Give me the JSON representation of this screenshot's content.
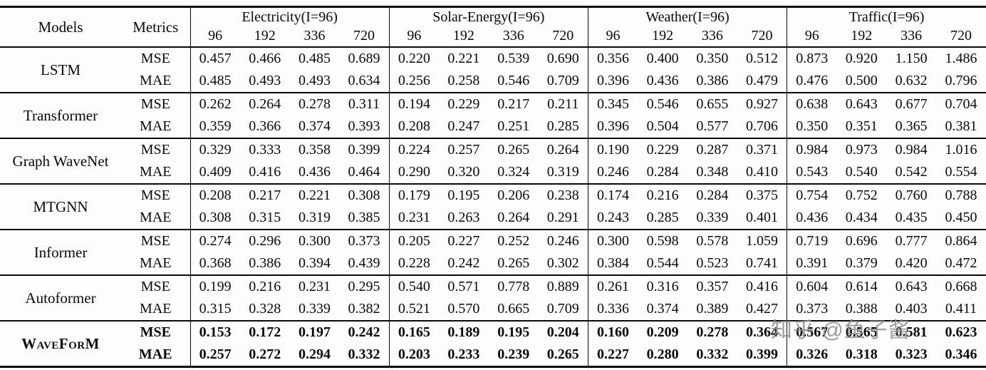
{
  "watermark": "知乎 @鱼子酱",
  "table": {
    "col_models": "Models",
    "col_metrics": "Metrics",
    "groups": [
      {
        "label": "Electricity(I=96)",
        "horizons": [
          "96",
          "192",
          "336",
          "720"
        ]
      },
      {
        "label": "Solar-Energy(I=96)",
        "horizons": [
          "96",
          "192",
          "336",
          "720"
        ]
      },
      {
        "label": "Weather(I=96)",
        "horizons": [
          "96",
          "192",
          "336",
          "720"
        ]
      },
      {
        "label": "Traffic(I=96)",
        "horizons": [
          "96",
          "192",
          "336",
          "720"
        ]
      }
    ],
    "rows": [
      {
        "model": "LSTM",
        "smallcaps": false,
        "bold": false,
        "metrics": [
          {
            "name": "MSE",
            "values": [
              "0.457",
              "0.466",
              "0.485",
              "0.689",
              "0.220",
              "0.221",
              "0.539",
              "0.690",
              "0.356",
              "0.400",
              "0.350",
              "0.512",
              "0.873",
              "0.920",
              "1.150",
              "1.486"
            ]
          },
          {
            "name": "MAE",
            "values": [
              "0.485",
              "0.493",
              "0.493",
              "0.634",
              "0.256",
              "0.258",
              "0.546",
              "0.709",
              "0.396",
              "0.436",
              "0.386",
              "0.479",
              "0.476",
              "0.500",
              "0.632",
              "0.796"
            ]
          }
        ]
      },
      {
        "model": "Transformer",
        "smallcaps": false,
        "bold": false,
        "metrics": [
          {
            "name": "MSE",
            "values": [
              "0.262",
              "0.264",
              "0.278",
              "0.311",
              "0.194",
              "0.229",
              "0.217",
              "0.211",
              "0.345",
              "0.546",
              "0.655",
              "0.927",
              "0.638",
              "0.643",
              "0.677",
              "0.704"
            ]
          },
          {
            "name": "MAE",
            "values": [
              "0.359",
              "0.366",
              "0.374",
              "0.393",
              "0.208",
              "0.247",
              "0.251",
              "0.285",
              "0.396",
              "0.504",
              "0.577",
              "0.706",
              "0.350",
              "0.351",
              "0.365",
              "0.381"
            ]
          }
        ]
      },
      {
        "model": "Graph WaveNet",
        "smallcaps": false,
        "bold": false,
        "metrics": [
          {
            "name": "MSE",
            "values": [
              "0.329",
              "0.333",
              "0.358",
              "0.399",
              "0.224",
              "0.257",
              "0.265",
              "0.264",
              "0.190",
              "0.229",
              "0.287",
              "0.371",
              "0.984",
              "0.973",
              "0.984",
              "1.016"
            ]
          },
          {
            "name": "MAE",
            "values": [
              "0.409",
              "0.416",
              "0.436",
              "0.464",
              "0.290",
              "0.320",
              "0.324",
              "0.319",
              "0.246",
              "0.284",
              "0.348",
              "0.410",
              "0.543",
              "0.540",
              "0.542",
              "0.554"
            ]
          }
        ]
      },
      {
        "model": "MTGNN",
        "smallcaps": false,
        "bold": false,
        "metrics": [
          {
            "name": "MSE",
            "values": [
              "0.208",
              "0.217",
              "0.221",
              "0.308",
              "0.179",
              "0.195",
              "0.206",
              "0.238",
              "0.174",
              "0.216",
              "0.284",
              "0.375",
              "0.754",
              "0.752",
              "0.760",
              "0.788"
            ]
          },
          {
            "name": "MAE",
            "values": [
              "0.308",
              "0.315",
              "0.319",
              "0.385",
              "0.231",
              "0.263",
              "0.264",
              "0.291",
              "0.243",
              "0.285",
              "0.339",
              "0.401",
              "0.436",
              "0.434",
              "0.435",
              "0.450"
            ]
          }
        ]
      },
      {
        "model": "Informer",
        "smallcaps": false,
        "bold": false,
        "metrics": [
          {
            "name": "MSE",
            "values": [
              "0.274",
              "0.296",
              "0.300",
              "0.373",
              "0.205",
              "0.227",
              "0.252",
              "0.246",
              "0.300",
              "0.598",
              "0.578",
              "1.059",
              "0.719",
              "0.696",
              "0.777",
              "0.864"
            ]
          },
          {
            "name": "MAE",
            "values": [
              "0.368",
              "0.386",
              "0.394",
              "0.439",
              "0.228",
              "0.242",
              "0.265",
              "0.302",
              "0.384",
              "0.544",
              "0.523",
              "0.741",
              "0.391",
              "0.379",
              "0.420",
              "0.472"
            ]
          }
        ]
      },
      {
        "model": "Autoformer",
        "smallcaps": false,
        "bold": false,
        "metrics": [
          {
            "name": "MSE",
            "values": [
              "0.199",
              "0.216",
              "0.231",
              "0.295",
              "0.540",
              "0.571",
              "0.778",
              "0.889",
              "0.261",
              "0.316",
              "0.357",
              "0.416",
              "0.604",
              "0.614",
              "0.643",
              "0.668"
            ]
          },
          {
            "name": "MAE",
            "values": [
              "0.315",
              "0.328",
              "0.339",
              "0.382",
              "0.521",
              "0.570",
              "0.665",
              "0.709",
              "0.336",
              "0.374",
              "0.389",
              "0.427",
              "0.373",
              "0.388",
              "0.403",
              "0.411"
            ]
          }
        ]
      },
      {
        "model": "WaveForM",
        "smallcaps": true,
        "bold": true,
        "metrics": [
          {
            "name": "MSE",
            "values": [
              "0.153",
              "0.172",
              "0.197",
              "0.242",
              "0.165",
              "0.189",
              "0.195",
              "0.204",
              "0.160",
              "0.209",
              "0.278",
              "0.364",
              "0.567",
              "0.565",
              "0.581",
              "0.623"
            ]
          },
          {
            "name": "MAE",
            "values": [
              "0.257",
              "0.272",
              "0.294",
              "0.332",
              "0.203",
              "0.233",
              "0.239",
              "0.265",
              "0.227",
              "0.280",
              "0.332",
              "0.399",
              "0.326",
              "0.318",
              "0.323",
              "0.346"
            ]
          }
        ]
      }
    ]
  }
}
